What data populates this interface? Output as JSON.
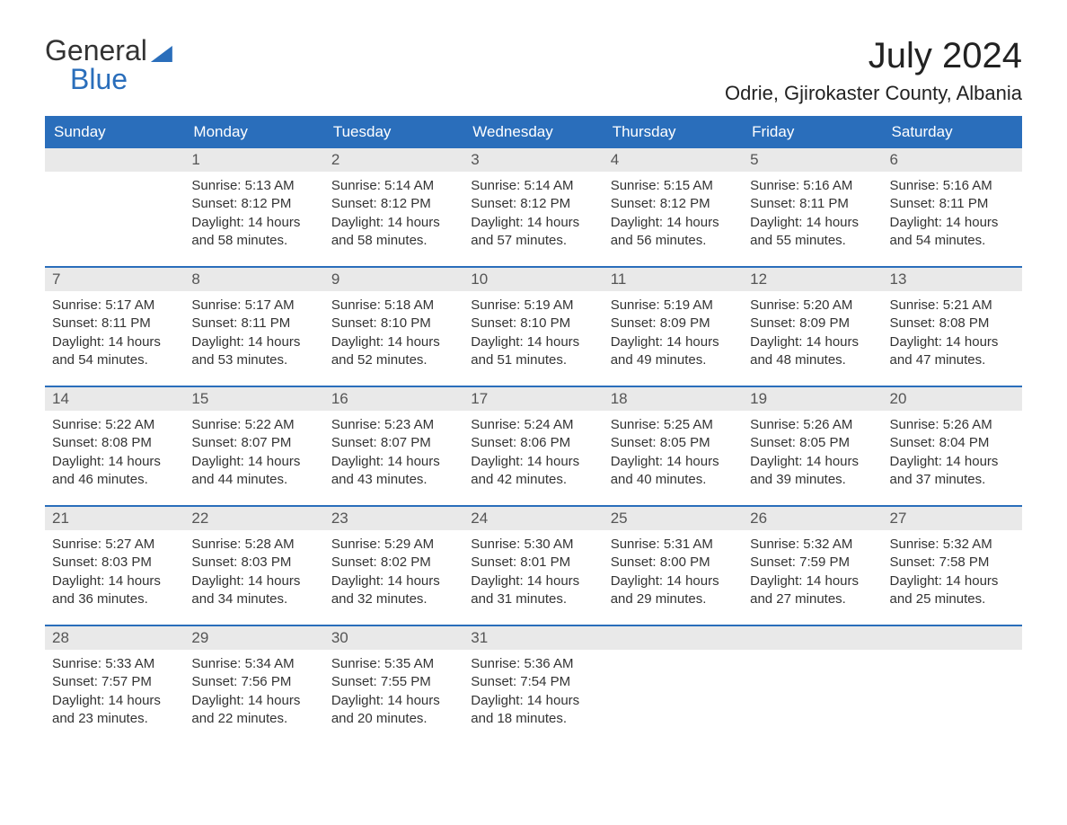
{
  "logo": {
    "word1": "General",
    "word2": "Blue"
  },
  "header": {
    "month_title": "July 2024",
    "location": "Odrie, Gjirokaster County, Albania"
  },
  "weekdays": [
    "Sunday",
    "Monday",
    "Tuesday",
    "Wednesday",
    "Thursday",
    "Friday",
    "Saturday"
  ],
  "colors": {
    "brand_blue": "#2a6ebb",
    "header_gray": "#e9e9e9",
    "text": "#333333",
    "background": "#ffffff"
  },
  "weeks": [
    [
      {
        "empty": true
      },
      {
        "day": "1",
        "sunrise": "Sunrise: 5:13 AM",
        "sunset": "Sunset: 8:12 PM",
        "daylight1": "Daylight: 14 hours",
        "daylight2": "and 58 minutes."
      },
      {
        "day": "2",
        "sunrise": "Sunrise: 5:14 AM",
        "sunset": "Sunset: 8:12 PM",
        "daylight1": "Daylight: 14 hours",
        "daylight2": "and 58 minutes."
      },
      {
        "day": "3",
        "sunrise": "Sunrise: 5:14 AM",
        "sunset": "Sunset: 8:12 PM",
        "daylight1": "Daylight: 14 hours",
        "daylight2": "and 57 minutes."
      },
      {
        "day": "4",
        "sunrise": "Sunrise: 5:15 AM",
        "sunset": "Sunset: 8:12 PM",
        "daylight1": "Daylight: 14 hours",
        "daylight2": "and 56 minutes."
      },
      {
        "day": "5",
        "sunrise": "Sunrise: 5:16 AM",
        "sunset": "Sunset: 8:11 PM",
        "daylight1": "Daylight: 14 hours",
        "daylight2": "and 55 minutes."
      },
      {
        "day": "6",
        "sunrise": "Sunrise: 5:16 AM",
        "sunset": "Sunset: 8:11 PM",
        "daylight1": "Daylight: 14 hours",
        "daylight2": "and 54 minutes."
      }
    ],
    [
      {
        "day": "7",
        "sunrise": "Sunrise: 5:17 AM",
        "sunset": "Sunset: 8:11 PM",
        "daylight1": "Daylight: 14 hours",
        "daylight2": "and 54 minutes."
      },
      {
        "day": "8",
        "sunrise": "Sunrise: 5:17 AM",
        "sunset": "Sunset: 8:11 PM",
        "daylight1": "Daylight: 14 hours",
        "daylight2": "and 53 minutes."
      },
      {
        "day": "9",
        "sunrise": "Sunrise: 5:18 AM",
        "sunset": "Sunset: 8:10 PM",
        "daylight1": "Daylight: 14 hours",
        "daylight2": "and 52 minutes."
      },
      {
        "day": "10",
        "sunrise": "Sunrise: 5:19 AM",
        "sunset": "Sunset: 8:10 PM",
        "daylight1": "Daylight: 14 hours",
        "daylight2": "and 51 minutes."
      },
      {
        "day": "11",
        "sunrise": "Sunrise: 5:19 AM",
        "sunset": "Sunset: 8:09 PM",
        "daylight1": "Daylight: 14 hours",
        "daylight2": "and 49 minutes."
      },
      {
        "day": "12",
        "sunrise": "Sunrise: 5:20 AM",
        "sunset": "Sunset: 8:09 PM",
        "daylight1": "Daylight: 14 hours",
        "daylight2": "and 48 minutes."
      },
      {
        "day": "13",
        "sunrise": "Sunrise: 5:21 AM",
        "sunset": "Sunset: 8:08 PM",
        "daylight1": "Daylight: 14 hours",
        "daylight2": "and 47 minutes."
      }
    ],
    [
      {
        "day": "14",
        "sunrise": "Sunrise: 5:22 AM",
        "sunset": "Sunset: 8:08 PM",
        "daylight1": "Daylight: 14 hours",
        "daylight2": "and 46 minutes."
      },
      {
        "day": "15",
        "sunrise": "Sunrise: 5:22 AM",
        "sunset": "Sunset: 8:07 PM",
        "daylight1": "Daylight: 14 hours",
        "daylight2": "and 44 minutes."
      },
      {
        "day": "16",
        "sunrise": "Sunrise: 5:23 AM",
        "sunset": "Sunset: 8:07 PM",
        "daylight1": "Daylight: 14 hours",
        "daylight2": "and 43 minutes."
      },
      {
        "day": "17",
        "sunrise": "Sunrise: 5:24 AM",
        "sunset": "Sunset: 8:06 PM",
        "daylight1": "Daylight: 14 hours",
        "daylight2": "and 42 minutes."
      },
      {
        "day": "18",
        "sunrise": "Sunrise: 5:25 AM",
        "sunset": "Sunset: 8:05 PM",
        "daylight1": "Daylight: 14 hours",
        "daylight2": "and 40 minutes."
      },
      {
        "day": "19",
        "sunrise": "Sunrise: 5:26 AM",
        "sunset": "Sunset: 8:05 PM",
        "daylight1": "Daylight: 14 hours",
        "daylight2": "and 39 minutes."
      },
      {
        "day": "20",
        "sunrise": "Sunrise: 5:26 AM",
        "sunset": "Sunset: 8:04 PM",
        "daylight1": "Daylight: 14 hours",
        "daylight2": "and 37 minutes."
      }
    ],
    [
      {
        "day": "21",
        "sunrise": "Sunrise: 5:27 AM",
        "sunset": "Sunset: 8:03 PM",
        "daylight1": "Daylight: 14 hours",
        "daylight2": "and 36 minutes."
      },
      {
        "day": "22",
        "sunrise": "Sunrise: 5:28 AM",
        "sunset": "Sunset: 8:03 PM",
        "daylight1": "Daylight: 14 hours",
        "daylight2": "and 34 minutes."
      },
      {
        "day": "23",
        "sunrise": "Sunrise: 5:29 AM",
        "sunset": "Sunset: 8:02 PM",
        "daylight1": "Daylight: 14 hours",
        "daylight2": "and 32 minutes."
      },
      {
        "day": "24",
        "sunrise": "Sunrise: 5:30 AM",
        "sunset": "Sunset: 8:01 PM",
        "daylight1": "Daylight: 14 hours",
        "daylight2": "and 31 minutes."
      },
      {
        "day": "25",
        "sunrise": "Sunrise: 5:31 AM",
        "sunset": "Sunset: 8:00 PM",
        "daylight1": "Daylight: 14 hours",
        "daylight2": "and 29 minutes."
      },
      {
        "day": "26",
        "sunrise": "Sunrise: 5:32 AM",
        "sunset": "Sunset: 7:59 PM",
        "daylight1": "Daylight: 14 hours",
        "daylight2": "and 27 minutes."
      },
      {
        "day": "27",
        "sunrise": "Sunrise: 5:32 AM",
        "sunset": "Sunset: 7:58 PM",
        "daylight1": "Daylight: 14 hours",
        "daylight2": "and 25 minutes."
      }
    ],
    [
      {
        "day": "28",
        "sunrise": "Sunrise: 5:33 AM",
        "sunset": "Sunset: 7:57 PM",
        "daylight1": "Daylight: 14 hours",
        "daylight2": "and 23 minutes."
      },
      {
        "day": "29",
        "sunrise": "Sunrise: 5:34 AM",
        "sunset": "Sunset: 7:56 PM",
        "daylight1": "Daylight: 14 hours",
        "daylight2": "and 22 minutes."
      },
      {
        "day": "30",
        "sunrise": "Sunrise: 5:35 AM",
        "sunset": "Sunset: 7:55 PM",
        "daylight1": "Daylight: 14 hours",
        "daylight2": "and 20 minutes."
      },
      {
        "day": "31",
        "sunrise": "Sunrise: 5:36 AM",
        "sunset": "Sunset: 7:54 PM",
        "daylight1": "Daylight: 14 hours",
        "daylight2": "and 18 minutes."
      },
      {
        "empty": true
      },
      {
        "empty": true
      },
      {
        "empty": true
      }
    ]
  ]
}
